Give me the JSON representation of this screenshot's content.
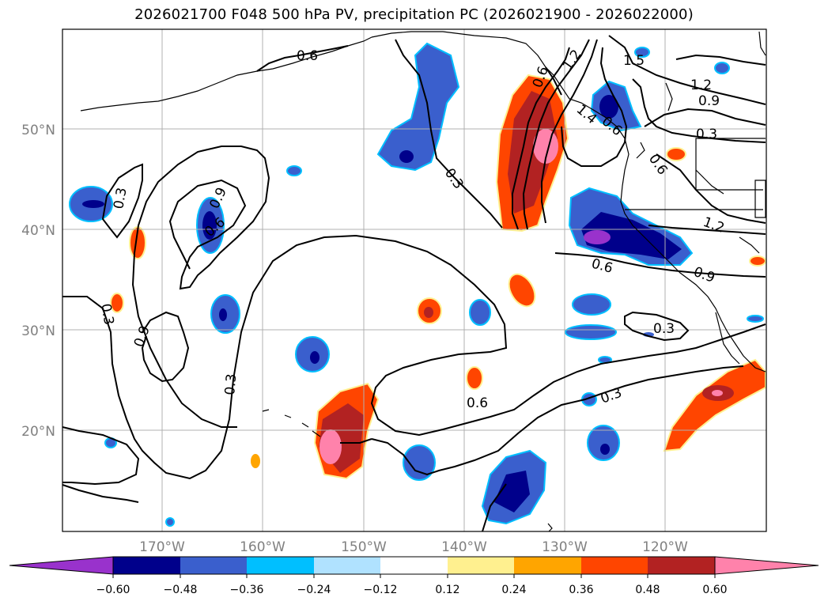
{
  "title": "2026021700 F048 500 hPa PV, precipitation PC (2026021900 - 2026022000)",
  "map": {
    "lon_labels": [
      "170°W",
      "160°W",
      "150°W",
      "140°W",
      "130°W",
      "120°W"
    ],
    "lat_labels": [
      "50°N",
      "40°N",
      "30°N",
      "20°N"
    ],
    "contour_labels": [
      "0.6",
      "1.2",
      "1.5",
      "1.2",
      "0.9",
      "0.3",
      "0.3",
      "0.6",
      "0.9",
      "0.6",
      "0.3",
      "0.3",
      "0.9",
      "0.3",
      "0.6",
      "1.2",
      "0.6",
      "0.9",
      "0.3",
      "0.6",
      "0.3",
      "1.4",
      "0.6"
    ]
  },
  "colorbar": {
    "tick_labels": [
      "−0.60",
      "−0.48",
      "−0.36",
      "−0.24",
      "−0.12",
      "0.12",
      "0.24",
      "0.36",
      "0.48",
      "0.60"
    ],
    "colors": [
      "#9932cc",
      "#00008b",
      "#3a5fcd",
      "#00bfff",
      "#b0e2ff",
      "#ffffff",
      "#fff08f",
      "#ffa500",
      "#ff4500",
      "#b22222",
      "#ff82ab"
    ]
  }
}
